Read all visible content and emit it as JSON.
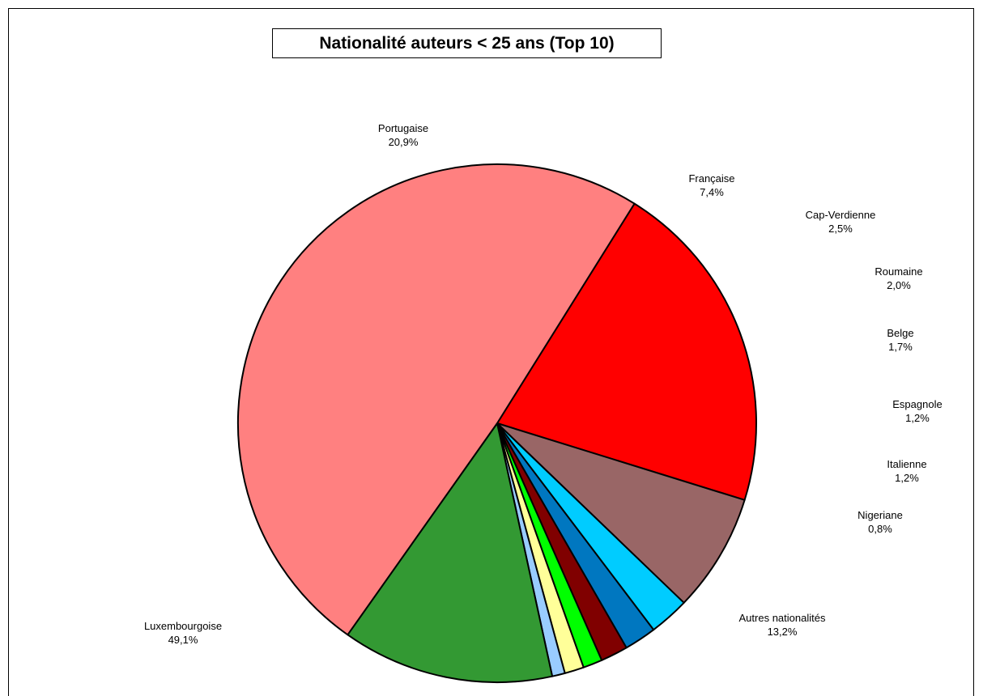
{
  "chart_data": {
    "type": "pie",
    "title": "Nationalité auteurs < 25 ans (Top 10)",
    "slices": [
      {
        "label": "Portugaise",
        "value": 20.9,
        "value_text": "20,9%",
        "color": "#ff0000"
      },
      {
        "label": "Française",
        "value": 7.4,
        "value_text": "7,4%",
        "color": "#996666"
      },
      {
        "label": "Cap-Verdienne",
        "value": 2.5,
        "value_text": "2,5%",
        "color": "#00ccff"
      },
      {
        "label": "Roumaine",
        "value": 2.0,
        "value_text": "2,0%",
        "color": "#0077c0"
      },
      {
        "label": "Belge",
        "value": 1.7,
        "value_text": "1,7%",
        "color": "#800000"
      },
      {
        "label": "Espagnole",
        "value": 1.2,
        "value_text": "1,2%",
        "color": "#00ff00"
      },
      {
        "label": "Italienne",
        "value": 1.2,
        "value_text": "1,2%",
        "color": "#ffff99"
      },
      {
        "label": "Nigeriane",
        "value": 0.8,
        "value_text": "0,8%",
        "color": "#99ccff"
      },
      {
        "label": "Autres nationalités",
        "value": 13.2,
        "value_text": "13,2%",
        "color": "#339933"
      },
      {
        "label": "Luxembourgoise",
        "value": 49.1,
        "value_text": "49,1%",
        "color": "#ff8080"
      }
    ],
    "start_angle_deg": -58,
    "direction": "clockwise",
    "legend": "none"
  }
}
